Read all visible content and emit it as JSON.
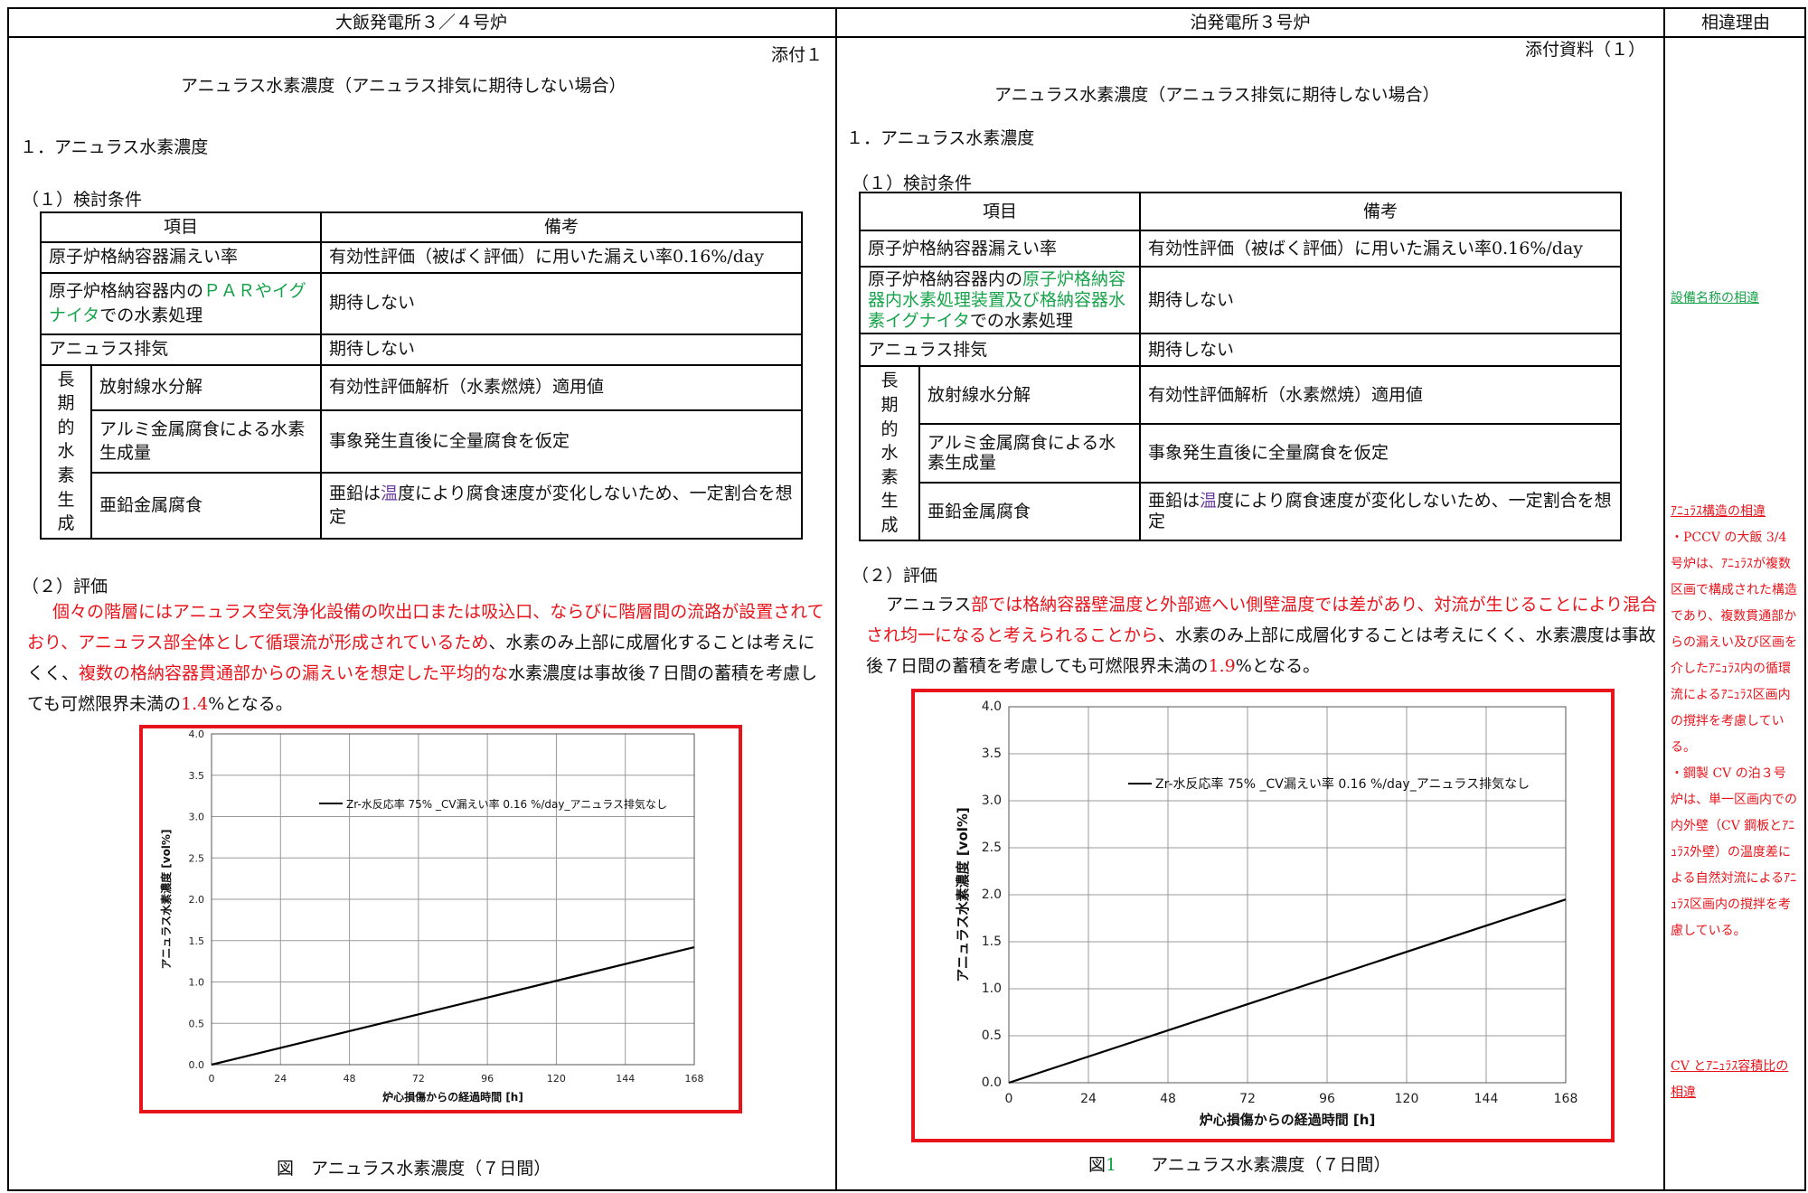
{
  "header": {
    "left": "大飯発電所３／４号炉",
    "middle": "泊発電所３号炉",
    "right": "相違理由"
  },
  "left": {
    "attach": "添付１",
    "title": "アニュラス水素濃度（アニュラス排気に期待しない場合）",
    "section1": "１．アニュラス水素濃度",
    "sub1": "（１）検討条件",
    "table": {
      "col1": "項目",
      "col2": "備考",
      "r1a": "原子炉格納容器漏えい率",
      "r1b": "有効性評価（被ばく評価）に用いた漏えい率0.16%/day",
      "r2a_pre": "原子炉格納容器内の",
      "r2a_grn": "ＰＡＲやイグナイタ",
      "r2a_post": "での水素処理",
      "r2b": "期待しない",
      "r3a": "アニュラス排気",
      "r3b": "期待しない",
      "group": "長期的水素生成",
      "r4a": "放射線水分解",
      "r4b": "有効性評価解析（水素燃焼）適用値",
      "r5a": "アルミ金属腐食による水素生成量",
      "r5b": "事象発生直後に全量腐食を仮定",
      "r6a": "亜鉛金属腐食",
      "r6b_pre": "亜鉛は",
      "r6b_pur": "温",
      "r6b_post": "度により腐食速度が変化しないため、一定割合を想定"
    },
    "sub2": "（２）評価",
    "eval_red1": "個々の階層にはアニュラス空気浄化設備の吹出口または吸込口、ならびに階層間の流路が設置されており、アニュラス部全体として循環流が形成されているため",
    "eval_blk1": "、水素のみ上部に成層化することは考えにくく、",
    "eval_red2": "複数の格納容器貫通部からの漏えいを想定した平均的な",
    "eval_blk2": "水素濃度は事故後７日間の蓄積を考慮しても可燃限界未満の",
    "eval_val": "1.4",
    "eval_end": "%となる。",
    "caption": "図　アニュラス水素濃度（７日間）"
  },
  "middle": {
    "attach": "添付資料（１）",
    "title": "アニュラス水素濃度（アニュラス排気に期待しない場合）",
    "section1": "１．アニュラス水素濃度",
    "sub1": "（１）検討条件",
    "table": {
      "col1": "項目",
      "col2": "備考",
      "r1a": "原子炉格納容器漏えい率",
      "r1b": "有効性評価（被ばく評価）に用いた漏えい率0.16%/day",
      "r2a_pre": "原子炉格納容器内の",
      "r2a_grn": "原子炉格納容器内水素処理装置及び格納容器水素イグナイタ",
      "r2a_post": "での水素処理",
      "r2b": "期待しない",
      "r3a": "アニュラス排気",
      "r3b": "期待しない",
      "group": "長期的水素生成",
      "r4a": "放射線水分解",
      "r4b": "有効性評価解析（水素燃焼）適用値",
      "r5a": "アルミ金属腐食による水素生成量",
      "r5b": "事象発生直後に全量腐食を仮定",
      "r6a": "亜鉛金属腐食",
      "r6b_pre": "亜鉛は",
      "r6b_pur": "温",
      "r6b_post": "度により腐食速度が変化しないため、一定割合を想定"
    },
    "sub2": "（２）評価",
    "eval_blk0": "アニュラス",
    "eval_red1": "部では格納容器壁温度と外部遮へい側壁温度では差があり、対流が生じることにより混合され均一になると考えられることから",
    "eval_blk1": "、水素のみ上部に成層化することは考えにくく、水素濃度は事故後７日間の蓄積を考慮しても可燃限界未満の",
    "eval_val": "1.9",
    "eval_end": "%となる。",
    "caption_pre": "図",
    "caption_num": "1",
    "caption_post": "　　アニュラス水素濃度（７日間）"
  },
  "reasons": {
    "r1": "設備名称の相違",
    "r2_title": "ｱﾆｭﾗｽ構造の相違",
    "r2_body": "・PCCV の大飯 3/4 号炉は、ｱﾆｭﾗｽが複数区画で構成された構造であり、複数貫通部からの漏えい及び区画を介したｱﾆｭﾗｽ内の循環流によるｱﾆｭﾗｽ区画内の撹拌を考慮している。",
    "r2_body2": "・鋼製 CV の泊３号炉は、単一区画内での内外壁（CV 鋼板とｱﾆｭﾗｽ外壁）の温度差による自然対流によるｱﾆｭﾗｽ区画内の撹拌を考慮している。",
    "r3": "CV とｱﾆｭﾗｽ容積比の相違"
  },
  "colors": {
    "red": "#e8141b",
    "green": "#16a34a",
    "purple": "#6b3fa0"
  },
  "chart_data": [
    {
      "type": "line",
      "xlabel": "炉心損傷からの経過時間 [h]",
      "ylabel": "アニュラス水素濃度 [vol%]",
      "xticks": [
        0,
        24,
        48,
        72,
        96,
        120,
        144,
        168
      ],
      "yticks": [
        "0.0",
        "0.5",
        "1.0",
        "1.5",
        "2.0",
        "2.5",
        "3.0",
        "3.5",
        "4.0"
      ],
      "xlim": [
        0,
        168
      ],
      "ylim": [
        0,
        4.0
      ],
      "grid": true,
      "legend_position": "top-right",
      "series": [
        {
          "name": "Zr-水反応率 75% _CV漏えい率 0.16 %/day_アニュラス排気なし",
          "x": [
            0,
            168
          ],
          "y": [
            0.0,
            1.42
          ]
        }
      ]
    },
    {
      "type": "line",
      "xlabel": "炉心損傷からの経過時間 [h]",
      "ylabel": "アニュラス水素濃度 [vol%]",
      "xticks": [
        0,
        24,
        48,
        72,
        96,
        120,
        144,
        168
      ],
      "yticks": [
        "0.0",
        "0.5",
        "1.0",
        "1.5",
        "2.0",
        "2.5",
        "3.0",
        "3.5",
        "4.0"
      ],
      "xlim": [
        0,
        168
      ],
      "ylim": [
        0,
        4.0
      ],
      "grid": true,
      "legend_position": "top-right",
      "series": [
        {
          "name": "Zr-水反応率 75% _CV漏えい率 0.16 %/day_アニュラス排気なし",
          "x": [
            0,
            168
          ],
          "y": [
            0.0,
            1.95
          ]
        }
      ]
    }
  ]
}
